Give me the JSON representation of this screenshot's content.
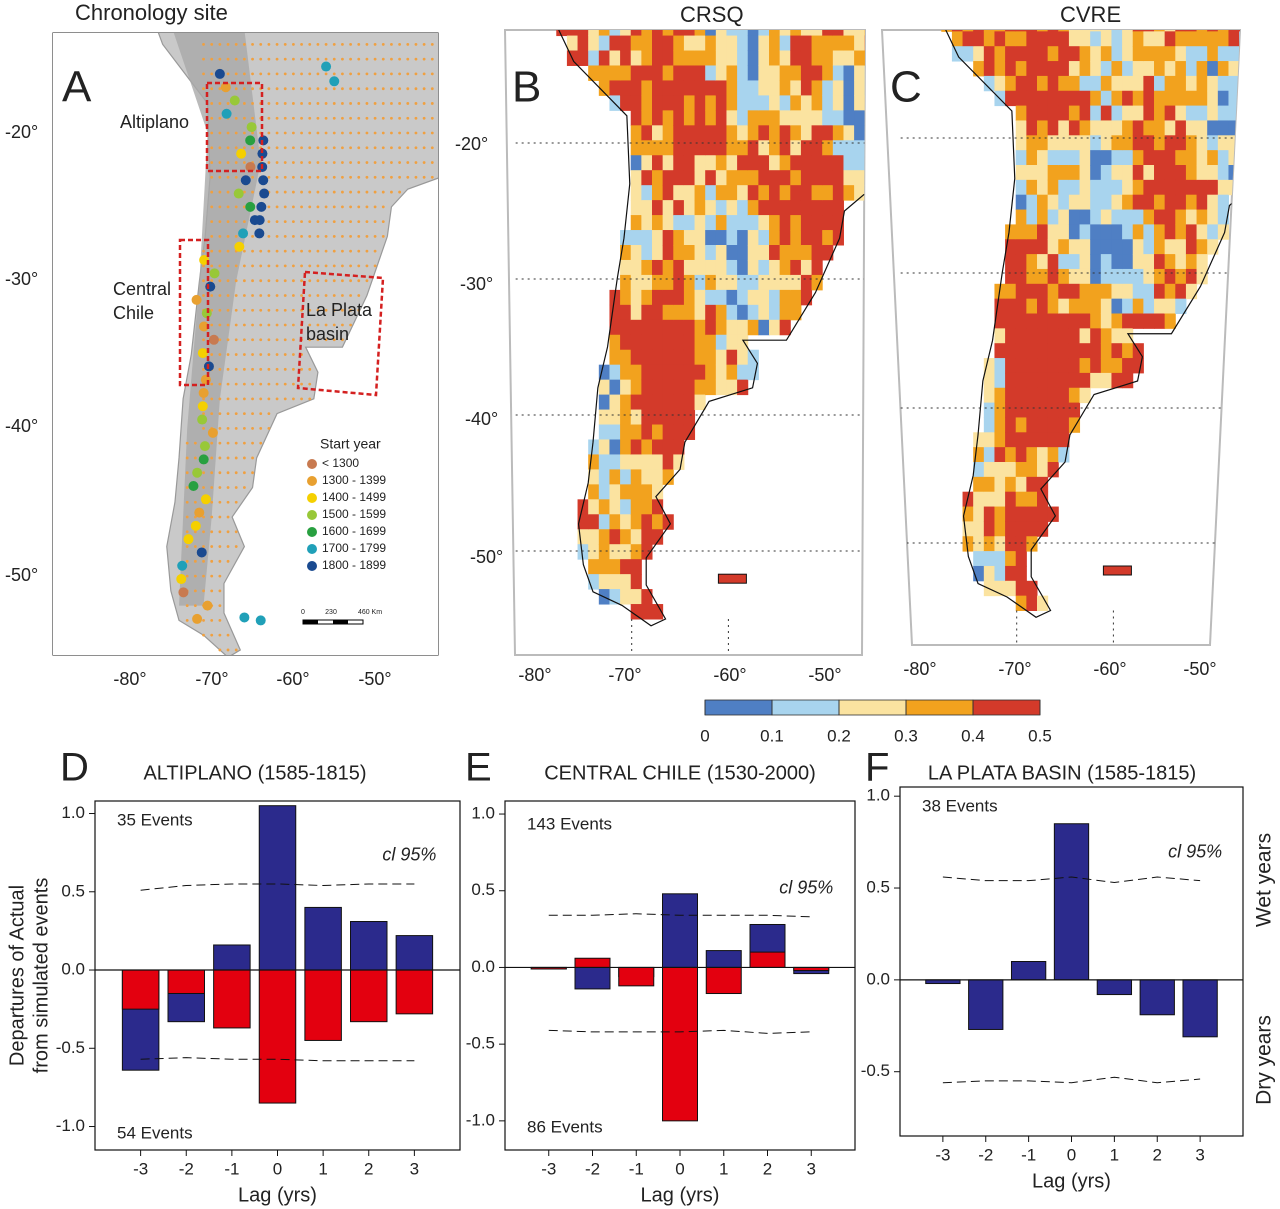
{
  "maps": {
    "A": {
      "letter": "A",
      "title": "Chronology site",
      "lat_labels": [
        "-20°",
        "-30°",
        "-40°",
        "-50°"
      ],
      "lon_labels": [
        "-80°",
        "-70°",
        "-60°",
        "-50°"
      ],
      "regions": [
        {
          "lines": [
            "Altiplano"
          ]
        },
        {
          "lines": [
            "Central",
            "Chile"
          ]
        },
        {
          "lines": [
            "La Plata",
            "basin"
          ]
        }
      ],
      "legend": {
        "title": "Start year",
        "entries": [
          {
            "label": "< 1300",
            "color": "#c87a50"
          },
          {
            "label": "1300 - 1399",
            "color": "#e8a030"
          },
          {
            "label": "1400 - 1499",
            "color": "#f5d000"
          },
          {
            "label": "1500 - 1599",
            "color": "#98c838"
          },
          {
            "label": "1600 - 1699",
            "color": "#28a040"
          },
          {
            "label": "1700 - 1799",
            "color": "#20a0b8"
          },
          {
            "label": "1800 - 1899",
            "color": "#1a4a90"
          }
        ]
      },
      "scale_bar": [
        "0",
        "230",
        "460 Km"
      ]
    },
    "B": {
      "letter": "B",
      "title": "CRSQ",
      "lat_labels": [
        "-20°",
        "-30°",
        "-40°",
        "-50°"
      ],
      "lon_labels": [
        "-80°",
        "-70°",
        "-60°",
        "-50°"
      ]
    },
    "C": {
      "letter": "C",
      "title": "CVRE",
      "lon_labels": [
        "-80°",
        "-70°",
        "-60°",
        "-50°"
      ]
    }
  },
  "colorbar": {
    "ticks": [
      0,
      0.1,
      0.2,
      0.3,
      0.4,
      0.5
    ],
    "colors": [
      "#4f7fc4",
      "#a8d4ee",
      "#fbe3a0",
      "#f2a21e",
      "#d33a2a"
    ]
  },
  "legend": [
    {
      "name": "Wet years",
      "color": "#2b2a8c"
    },
    {
      "name": "Dry years",
      "color": "#e3000f"
    }
  ],
  "chart_data": [
    {
      "type": "bar",
      "letter": "D",
      "title": "ALTIPLANO (1585-1815)",
      "xlabel": "Lag (yrs)",
      "ylabel": [
        "Departures of Actual",
        "from simulated events"
      ],
      "categories": [
        "-3",
        "-2",
        "-1",
        "0",
        "1",
        "2",
        "3"
      ],
      "series": [
        {
          "color": "#2b2a8c",
          "values": [
            -0.64,
            -0.33,
            0.16,
            1.05,
            0.4,
            0.31,
            0.22
          ]
        },
        {
          "color": "#e3000f",
          "values": [
            -0.25,
            -0.15,
            -0.37,
            -0.85,
            -0.45,
            -0.33,
            -0.28
          ]
        }
      ],
      "cl_upper": [
        0.51,
        0.54,
        0.55,
        0.55,
        0.54,
        0.55,
        0.55
      ],
      "cl_lower": [
        -0.57,
        -0.56,
        -0.57,
        -0.57,
        -0.58,
        -0.58,
        -0.58
      ],
      "cl_label": "cl 95%",
      "events_top": "35 Events",
      "events_bottom": "54 Events",
      "ylim": [
        -1.15,
        1.08
      ],
      "yticks": [
        {
          "value": 1,
          "label": "1.0"
        },
        0.5,
        {
          "value": 0,
          "label": "0.0"
        },
        -0.5,
        {
          "value": -1,
          "label": "-1.0"
        }
      ]
    },
    {
      "type": "bar",
      "letter": "E",
      "title": "CENTRAL CHILE (1530-2000)",
      "xlabel": "Lag (yrs)",
      "categories": [
        "-3",
        "-2",
        "-1",
        "0",
        "1",
        "2",
        "3"
      ],
      "series": [
        {
          "color": "#2b2a8c",
          "values": [
            -0.01,
            -0.14,
            -0.06,
            0.48,
            0.11,
            0.28,
            -0.04
          ]
        },
        {
          "color": "#e3000f",
          "values": [
            -0.01,
            0.06,
            -0.12,
            -1.0,
            -0.17,
            0.1,
            -0.02
          ]
        }
      ],
      "cl_upper": [
        0.34,
        0.34,
        0.35,
        0.34,
        0.34,
        0.34,
        0.33
      ],
      "cl_lower": [
        -0.41,
        -0.42,
        -0.42,
        -0.42,
        -0.41,
        -0.43,
        -0.42
      ],
      "cl_label": "cl 95%",
      "events_top": "143 Events",
      "events_bottom": "86 Events",
      "ylim": [
        -1.19,
        1.085
      ],
      "yticks": [
        {
          "value": 1,
          "label": "1.0"
        },
        0.5,
        {
          "value": 0,
          "label": "0.0"
        },
        -0.5,
        {
          "value": -1,
          "label": "-1.0"
        }
      ]
    },
    {
      "type": "bar",
      "letter": "F",
      "title": "LA PLATA BASIN (1585-1815)",
      "xlabel": "Lag (yrs)",
      "categories": [
        "-3",
        "-2",
        "-1",
        "0",
        "1",
        "2",
        "3"
      ],
      "series": [
        {
          "color": "#2b2a8c",
          "values": [
            -0.02,
            -0.27,
            0.1,
            0.85,
            -0.08,
            -0.19,
            -0.31
          ]
        }
      ],
      "cl_upper": [
        0.56,
        0.54,
        0.54,
        0.56,
        0.53,
        0.56,
        0.54
      ],
      "cl_lower": [
        -0.56,
        -0.55,
        -0.55,
        -0.56,
        -0.53,
        -0.56,
        -0.54
      ],
      "cl_label": "cl 95%",
      "events_top": "38 Events",
      "ylim": [
        -0.85,
        1.05
      ],
      "yticks": [
        {
          "value": 1,
          "label": "1.0"
        },
        0.5,
        {
          "value": 0,
          "label": "0.0"
        },
        -0.5
      ]
    }
  ]
}
